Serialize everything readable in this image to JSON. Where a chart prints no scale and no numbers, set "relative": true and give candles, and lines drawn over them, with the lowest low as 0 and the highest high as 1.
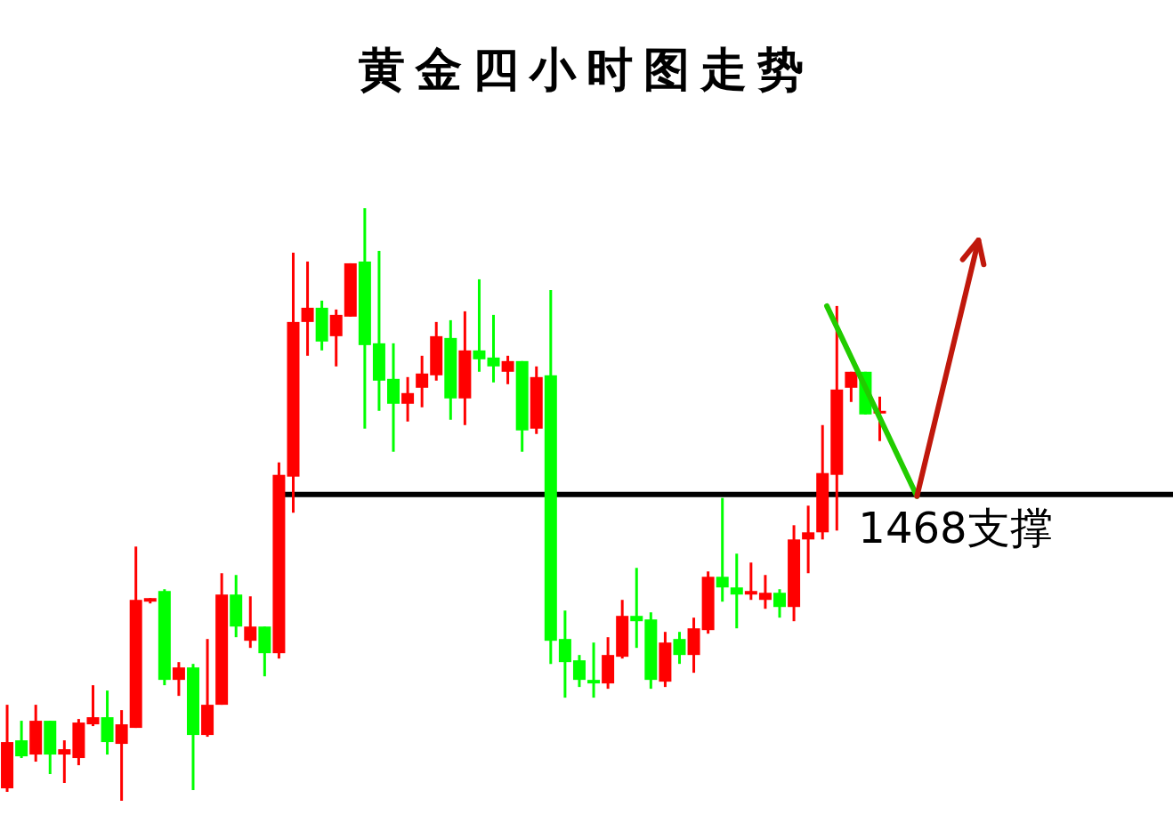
{
  "chart_data": {
    "type": "candlestick",
    "title": "黄金四小时图走势",
    "relative": true,
    "categories": [
      null,
      null,
      null,
      null,
      null,
      null,
      null,
      null,
      null,
      null,
      null,
      null,
      null,
      null,
      null,
      null,
      null,
      null,
      null,
      null,
      null,
      null,
      null,
      null,
      null,
      null,
      null,
      null,
      null,
      null,
      null,
      null,
      null,
      null,
      null,
      null,
      null,
      null,
      null,
      null,
      null,
      null,
      null,
      null,
      null,
      null,
      null,
      null,
      null,
      null,
      null,
      null,
      null,
      null,
      null,
      null,
      null,
      null,
      null,
      null,
      null,
      null
    ],
    "ohlc": [
      [
        0.021,
        0.162,
        0.015,
        0.099
      ],
      [
        0.102,
        0.135,
        0.072,
        0.075
      ],
      [
        0.078,
        0.162,
        0.066,
        0.135
      ],
      [
        0.135,
        0.135,
        0.045,
        0.078
      ],
      [
        0.078,
        0.102,
        0.03,
        0.087
      ],
      [
        0.072,
        0.138,
        0.06,
        0.132
      ],
      [
        0.129,
        0.195,
        0.126,
        0.141
      ],
      [
        0.141,
        0.186,
        0.078,
        0.099
      ],
      [
        0.096,
        0.153,
        0,
        0.129
      ],
      [
        0.123,
        0.429,
        0.123,
        0.339
      ],
      [
        0.336,
        0.342,
        0.333,
        0.342
      ],
      [
        0.354,
        0.357,
        0.195,
        0.204
      ],
      [
        0.204,
        0.234,
        0.177,
        0.225
      ],
      [
        0.225,
        0.231,
        0.018,
        0.111
      ],
      [
        0.111,
        0.273,
        0.108,
        0.162
      ],
      [
        0.162,
        0.384,
        0.162,
        0.348
      ],
      [
        0.348,
        0.381,
        0.276,
        0.294
      ],
      [
        0.27,
        0.345,
        0.258,
        0.294
      ],
      [
        0.294,
        0.294,
        0.21,
        0.249
      ],
      [
        0.249,
        0.571,
        0.24,
        0.55
      ],
      [
        0.547,
        0.925,
        0.486,
        0.808
      ],
      [
        0.808,
        0.91,
        0.751,
        0.832
      ],
      [
        0.832,
        0.844,
        0.76,
        0.775
      ],
      [
        0.784,
        0.829,
        0.733,
        0.82
      ],
      [
        0.817,
        0.907,
        0.817,
        0.907
      ],
      [
        0.91,
        1,
        0.628,
        0.769
      ],
      [
        0.772,
        0.928,
        0.658,
        0.709
      ],
      [
        0.712,
        0.772,
        0.589,
        0.67
      ],
      [
        0.67,
        0.715,
        0.64,
        0.688
      ],
      [
        0.697,
        0.751,
        0.664,
        0.721
      ],
      [
        0.718,
        0.808,
        0.709,
        0.784
      ],
      [
        0.781,
        0.811,
        0.643,
        0.679
      ],
      [
        0.679,
        0.826,
        0.634,
        0.76
      ],
      [
        0.76,
        0.88,
        0.724,
        0.745
      ],
      [
        0.748,
        0.82,
        0.706,
        0.733
      ],
      [
        0.724,
        0.751,
        0.703,
        0.742
      ],
      [
        0.742,
        0.742,
        0.589,
        0.625
      ],
      [
        0.628,
        0.733,
        0.619,
        0.715
      ],
      [
        0.718,
        0.862,
        0.231,
        0.27
      ],
      [
        0.273,
        0.321,
        0.174,
        0.234
      ],
      [
        0.237,
        0.246,
        0.192,
        0.204
      ],
      [
        0.204,
        0.267,
        0.174,
        0.198
      ],
      [
        0.198,
        0.276,
        0.189,
        0.246
      ],
      [
        0.243,
        0.339,
        0.24,
        0.312
      ],
      [
        0.312,
        0.393,
        0.258,
        0.303
      ],
      [
        0.306,
        0.318,
        0.189,
        0.204
      ],
      [
        0.201,
        0.285,
        0.192,
        0.267
      ],
      [
        0.273,
        0.285,
        0.231,
        0.246
      ],
      [
        0.246,
        0.309,
        0.216,
        0.291
      ],
      [
        0.288,
        0.387,
        0.282,
        0.378
      ],
      [
        0.378,
        0.511,
        0.336,
        0.36
      ],
      [
        0.36,
        0.417,
        0.291,
        0.348
      ],
      [
        0.348,
        0.402,
        0.339,
        0.354
      ],
      [
        0.339,
        0.381,
        0.324,
        0.351
      ],
      [
        0.351,
        0.357,
        0.309,
        0.327
      ],
      [
        0.327,
        0.465,
        0.303,
        0.441
      ],
      [
        0.441,
        0.498,
        0.384,
        0.453
      ],
      [
        0.453,
        0.634,
        0.441,
        0.553
      ],
      [
        0.55,
        0.835,
        0.456,
        0.694
      ],
      [
        0.697,
        0.724,
        0.673,
        0.724
      ],
      [
        0.724,
        0.724,
        0.652,
        0.652
      ],
      [
        0.655,
        0.682,
        0.607,
        0.658
      ]
    ],
    "colors": [
      "#ff0000",
      "#00ff00",
      "#ff0000",
      "#00ff00",
      "#ff0000",
      "#ff0000",
      "#ff0000",
      "#00ff00",
      "#ff0000",
      "#ff0000",
      "#ff0000",
      "#00ff00",
      "#ff0000",
      "#00ff00",
      "#ff0000",
      "#ff0000",
      "#00ff00",
      "#ff0000",
      "#00ff00",
      "#ff0000",
      "#ff0000",
      "#ff0000",
      "#00ff00",
      "#ff0000",
      "#ff0000",
      "#00ff00",
      "#00ff00",
      "#00ff00",
      "#ff0000",
      "#ff0000",
      "#ff0000",
      "#00ff00",
      "#ff0000",
      "#00ff00",
      "#00ff00",
      "#ff0000",
      "#00ff00",
      "#ff0000",
      "#00ff00",
      "#00ff00",
      "#00ff00",
      "#00ff00",
      "#ff0000",
      "#ff0000",
      "#00ff00",
      "#00ff00",
      "#ff0000",
      "#00ff00",
      "#ff0000",
      "#ff0000",
      "#00ff00",
      "#00ff00",
      "#ff0000",
      "#ff0000",
      "#00ff00",
      "#ff0000",
      "#ff0000",
      "#ff0000",
      "#ff0000",
      "#ff0000",
      "#00ff00",
      "#ff0000"
    ],
    "ref_lines": [
      {
        "axis": "y",
        "value": 0.517,
        "label": "1468支撑",
        "color": "#000000"
      }
    ]
  }
}
